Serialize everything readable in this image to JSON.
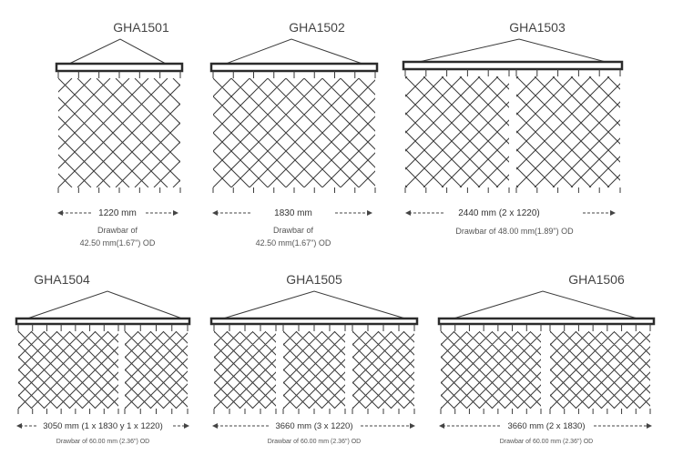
{
  "colors": {
    "line": "#3a3a3a",
    "bar": "#2b2b2b",
    "text": "#444444"
  },
  "harrows": [
    {
      "code": "GHA1501",
      "width_label": "1220 mm",
      "drawbar_line1": "Drawbar of",
      "drawbar_line2": "42.50 mm(1.67\") OD",
      "panels": 1
    },
    {
      "code": "GHA1502",
      "width_label": "1830 mm",
      "drawbar_line1": "Drawbar of",
      "drawbar_line2": "42.50 mm(1.67\") OD",
      "panels": 1
    },
    {
      "code": "GHA1503",
      "width_label": "2440 mm (2 x 1220)",
      "drawbar_line1": "Drawbar of 48.00 mm(1.89\") OD",
      "drawbar_line2": "",
      "panels": 2
    },
    {
      "code": "GHA1504",
      "width_label": "3050 mm (1 x 1830 y 1 x 1220)",
      "drawbar_line1": "Drawbar of 60.00 mm (2.36\") OD",
      "drawbar_line2": "",
      "panels": 2
    },
    {
      "code": "GHA1505",
      "width_label": "3660 mm (3 x 1220)",
      "drawbar_line1": "Drawbar of 60.00 mm (2.36\") OD",
      "drawbar_line2": "",
      "panels": 3
    },
    {
      "code": "GHA1506",
      "width_label": "3660 mm (2 x 1830)",
      "drawbar_line1": "Drawbar of 60.00 mm (2.36\") OD",
      "drawbar_line2": "",
      "panels": 2
    }
  ]
}
